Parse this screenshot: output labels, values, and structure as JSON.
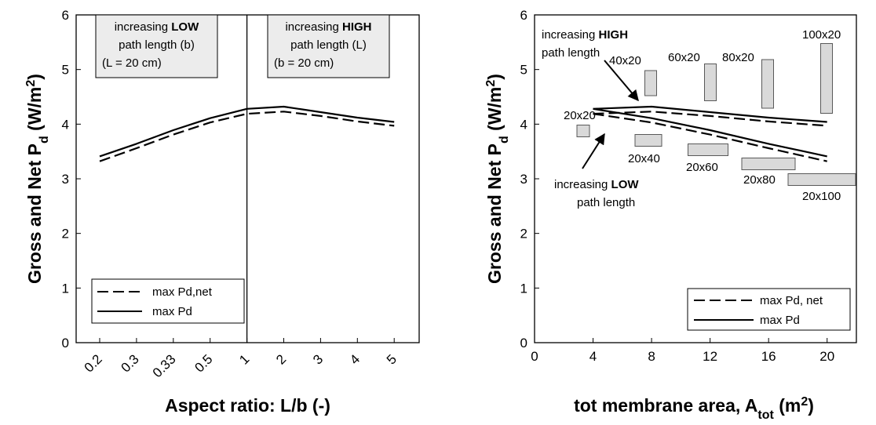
{
  "chart_data": [
    {
      "type": "line",
      "xlabel": "Aspect ratio: L/b (-)",
      "ylabel_main": "Gross and Net P",
      "ylabel_sub": "d",
      "ylabel_unit": " (W/m",
      "ylabel_sup": "2",
      "ylabel_close": ")",
      "ylim": [
        0,
        6
      ],
      "yticks": [
        0,
        1,
        2,
        3,
        4,
        5,
        6
      ],
      "categories": [
        "0.2",
        "0.3",
        "0.33",
        "0.5",
        "1",
        "2",
        "3",
        "4",
        "5"
      ],
      "series": [
        {
          "name": "max Pd",
          "style": "solid",
          "values": [
            3.41,
            3.64,
            3.89,
            4.11,
            4.28,
            4.32,
            4.22,
            4.12,
            4.04
          ]
        },
        {
          "name": "max Pd,net",
          "style": "dashed",
          "values": [
            3.32,
            3.56,
            3.81,
            4.03,
            4.19,
            4.23,
            4.15,
            4.05,
            3.97
          ]
        }
      ],
      "annotations": {
        "left_box": {
          "line1": "increasing ",
          "line1_bold": "LOW",
          "line2": "path length (b)",
          "line3": "(L = 20 cm)"
        },
        "right_box": {
          "line1": "increasing ",
          "line1_bold": "HIGH",
          "line2": "path length (L)",
          "line3": "(b = 20 cm)"
        }
      },
      "legend_position": "bottom-left"
    },
    {
      "type": "line",
      "xlabel_main": "tot membrane area, A",
      "xlabel_sub": "tot",
      "xlabel_unit": " (m",
      "xlabel_sup": "2",
      "xlabel_close": ")",
      "ylabel_main": "Gross and Net P",
      "ylabel_sub": "d",
      "ylabel_unit": " (W/m",
      "ylabel_sup": "2",
      "ylabel_close": ")",
      "xlim": [
        0,
        22
      ],
      "xticks": [
        0,
        4,
        8,
        12,
        16,
        20
      ],
      "ylim": [
        0,
        6
      ],
      "yticks": [
        0,
        1,
        2,
        3,
        4,
        5,
        6
      ],
      "series": [
        {
          "name": "max Pd",
          "style": "solid",
          "group": "high",
          "x": [
            4,
            8,
            12,
            16,
            20
          ],
          "y": [
            4.28,
            4.32,
            4.22,
            4.12,
            4.04
          ]
        },
        {
          "name": "max Pd, net",
          "style": "dashed",
          "group": "high",
          "x": [
            4,
            8,
            12,
            16,
            20
          ],
          "y": [
            4.19,
            4.23,
            4.15,
            4.05,
            3.97
          ]
        },
        {
          "name": "max Pd",
          "style": "solid",
          "group": "low",
          "x": [
            4,
            8,
            12,
            16,
            20
          ],
          "y": [
            4.28,
            4.11,
            3.89,
            3.64,
            3.41
          ]
        },
        {
          "name": "max Pd, net",
          "style": "dashed",
          "group": "low",
          "x": [
            4,
            8,
            12,
            16,
            20
          ],
          "y": [
            4.19,
            4.03,
            3.81,
            3.56,
            3.32
          ]
        }
      ],
      "rect_labels": [
        {
          "label": "20x20",
          "x": 3.3,
          "y": 4.3
        },
        {
          "label": "40x20",
          "x": 7.6,
          "y": 4.76
        },
        {
          "label": "60x20",
          "x": 11.7,
          "y": 4.78
        },
        {
          "label": "80x20",
          "x": 15.6,
          "y": 4.74
        },
        {
          "label": "100x20",
          "x": 19.8,
          "y": 4.85
        },
        {
          "label": "20x40",
          "x": 7.6,
          "y": 3.7
        },
        {
          "label": "20x60",
          "x": 11.7,
          "y": 3.52
        },
        {
          "label": "20x80",
          "x": 15.6,
          "y": 3.28
        },
        {
          "label": "20x100",
          "x": 20.2,
          "y": 2.98
        }
      ],
      "annotations": {
        "high": {
          "line1": "increasing ",
          "line1_bold": "HIGH",
          "line2": "path length"
        },
        "low": {
          "line1": "increasing ",
          "line1_bold": "LOW",
          "line2": "path length"
        }
      },
      "legend_position": "bottom-right"
    }
  ]
}
